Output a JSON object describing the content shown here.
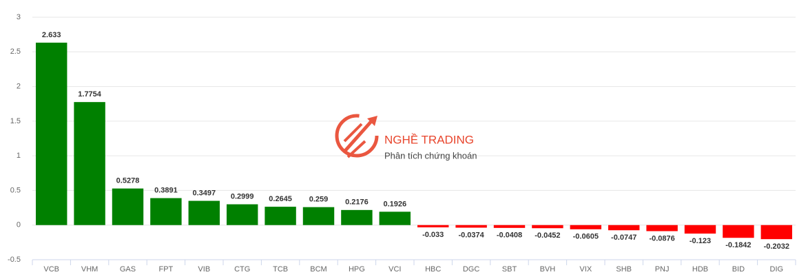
{
  "chart_data": {
    "type": "bar",
    "categories": [
      "VCB",
      "VHM",
      "GAS",
      "FPT",
      "VIB",
      "CTG",
      "TCB",
      "BCM",
      "HPG",
      "VCI",
      "HBC",
      "DGC",
      "SBT",
      "BVH",
      "VIX",
      "SHB",
      "PNJ",
      "HDB",
      "BID",
      "DIG"
    ],
    "values": [
      2.633,
      1.7754,
      0.5278,
      0.3891,
      0.3497,
      0.2999,
      0.2645,
      0.259,
      0.2176,
      0.1926,
      -0.033,
      -0.0374,
      -0.0408,
      -0.0452,
      -0.0605,
      -0.0747,
      -0.0876,
      -0.123,
      -0.1842,
      -0.2032
    ],
    "positive_color": "#008000",
    "negative_color": "#ff0000",
    "ylim": [
      -0.5,
      3
    ],
    "yticks": [
      3,
      2.5,
      2,
      1.5,
      1,
      0.5,
      0,
      -0.5
    ],
    "grid": true
  },
  "watermark": {
    "title": "NGHỀ TRADING",
    "subtitle": "Phân tích chứng khoán"
  }
}
